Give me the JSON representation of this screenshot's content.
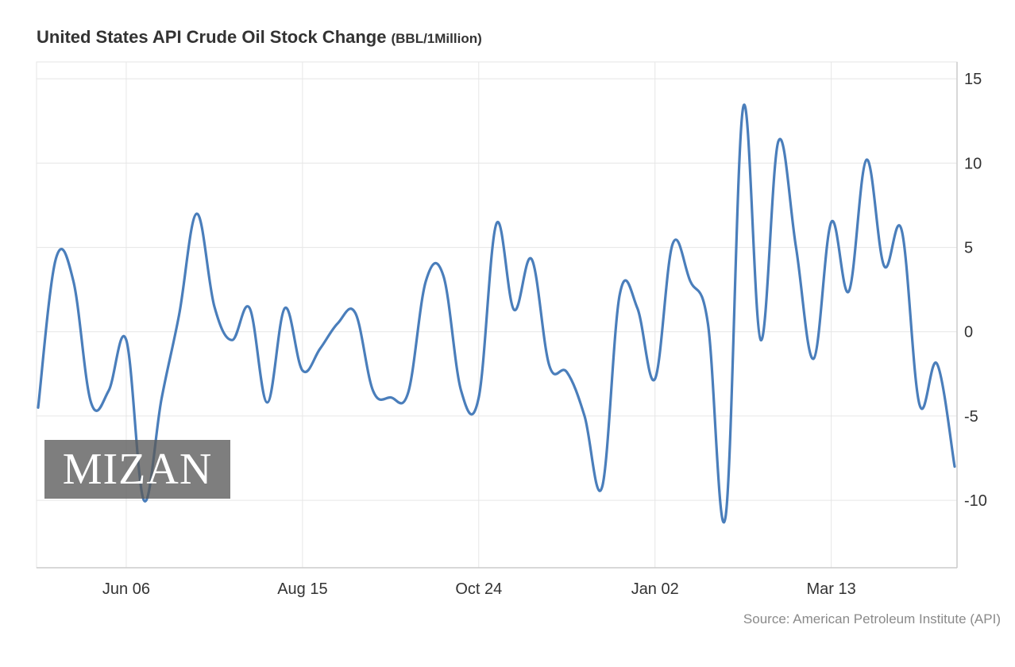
{
  "header": {
    "title": "United States API Crude Oil Stock Change",
    "unit": "(BBL/1Million)"
  },
  "footer": {
    "source": "Source: American Petroleum Institute (API)"
  },
  "watermark": {
    "text": "MIZAN"
  },
  "colors": {
    "line": "#4a7ebb",
    "grid": "#e6e6e6",
    "axis": "#cccccc",
    "text": "#333333",
    "source": "#8a8a8a"
  },
  "chart_data": {
    "type": "line",
    "title": "United States API Crude Oil Stock Change",
    "subtitle": "(BBL/1Million)",
    "xlabel": "",
    "ylabel": "",
    "ylim": [
      -14,
      16
    ],
    "yticks": [
      15,
      10,
      5,
      0,
      -5,
      -10
    ],
    "xticks": [
      {
        "label": "Jun 06",
        "index": 5
      },
      {
        "label": "Aug 15",
        "index": 15
      },
      {
        "label": "Oct 24",
        "index": 25
      },
      {
        "label": "Jan 02",
        "index": 35
      },
      {
        "label": "Mar 13",
        "index": 45
      }
    ],
    "grid": true,
    "legend": "none",
    "y_axis_position": "right",
    "series": [
      {
        "values": [
          -4.5,
          4.3,
          3.0,
          -4.2,
          -3.5,
          -0.5,
          -10.0,
          -4.0,
          1.0,
          7.0,
          1.5,
          -0.5,
          1.4,
          -4.2,
          1.4,
          -2.3,
          -1.0,
          0.5,
          1.1,
          -3.5,
          -3.9,
          -3.6,
          3.0,
          3.3,
          -3.5,
          -3.9,
          6.4,
          1.3,
          4.3,
          -2.0,
          -2.4,
          -5.0,
          -9.2,
          2.2,
          1.4,
          -2.8,
          5.2,
          3.0,
          0.5,
          -11.0,
          13.3,
          -0.5,
          11.3,
          5.0,
          -1.6,
          6.5,
          2.4,
          10.2,
          3.9,
          6.0,
          -4.3,
          -1.9,
          -8.0
        ]
      }
    ]
  }
}
